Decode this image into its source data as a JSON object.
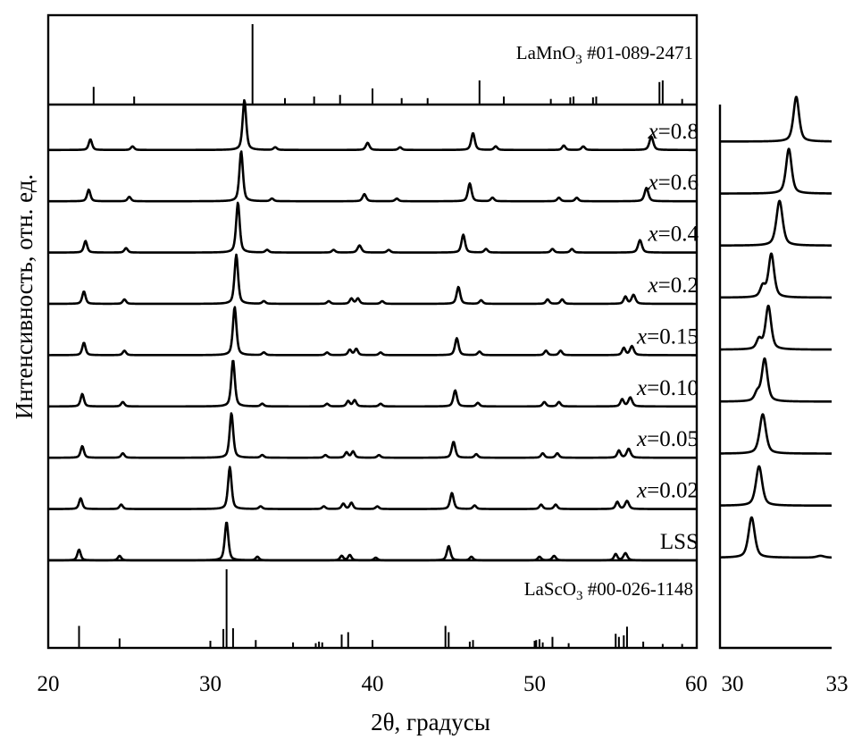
{
  "chart_data": [
    {
      "type": "line",
      "xlabel": "2θ, градусы",
      "ylabel": "Интенсивность, отн. ед.",
      "xlim": [
        20,
        60
      ],
      "xticks": [
        "20",
        "30",
        "40",
        "50",
        "60"
      ],
      "offset_stacked": true,
      "reference_top": {
        "label_parts": [
          "LaMnO",
          "3",
          " #01-089-2471"
        ],
        "peaks": [
          [
            22.8,
            0.22
          ],
          [
            25.3,
            0.1
          ],
          [
            32.6,
            1.0
          ],
          [
            34.6,
            0.08
          ],
          [
            36.4,
            0.1
          ],
          [
            38.0,
            0.12
          ],
          [
            40.0,
            0.2
          ],
          [
            41.8,
            0.08
          ],
          [
            43.4,
            0.08
          ],
          [
            46.6,
            0.3
          ],
          [
            48.1,
            0.1
          ],
          [
            51.0,
            0.07
          ],
          [
            52.2,
            0.09
          ],
          [
            52.4,
            0.1
          ],
          [
            53.6,
            0.09
          ],
          [
            53.8,
            0.1
          ],
          [
            57.7,
            0.28
          ],
          [
            57.9,
            0.3
          ],
          [
            59.1,
            0.07
          ]
        ]
      },
      "series": [
        {
          "name": "LSS",
          "name_parts": [
            "",
            "LSS"
          ],
          "peaks": [
            [
              21.9,
              0.12,
              0.12
            ],
            [
              24.4,
              0.05,
              0.12
            ],
            [
              31.0,
              0.43,
              0.13
            ],
            [
              32.9,
              0.04,
              0.12
            ],
            [
              38.1,
              0.05,
              0.12
            ],
            [
              38.6,
              0.06,
              0.12
            ],
            [
              40.2,
              0.03,
              0.12
            ],
            [
              44.7,
              0.16,
              0.13
            ],
            [
              46.1,
              0.04,
              0.12
            ],
            [
              50.3,
              0.04,
              0.12
            ],
            [
              51.2,
              0.05,
              0.13
            ],
            [
              55.0,
              0.07,
              0.12
            ],
            [
              55.6,
              0.08,
              0.14
            ]
          ]
        },
        {
          "name": "x=0.02",
          "name_parts": [
            "x",
            "=0.02"
          ],
          "peaks": [
            [
              22.0,
              0.12,
              0.12
            ],
            [
              24.5,
              0.05,
              0.12
            ],
            [
              31.2,
              0.47,
              0.13
            ],
            [
              33.1,
              0.03,
              0.12
            ],
            [
              37.0,
              0.03,
              0.12
            ],
            [
              38.2,
              0.06,
              0.12
            ],
            [
              38.7,
              0.07,
              0.12
            ],
            [
              40.3,
              0.03,
              0.12
            ],
            [
              44.9,
              0.18,
              0.13
            ],
            [
              46.3,
              0.04,
              0.12
            ],
            [
              50.4,
              0.05,
              0.12
            ],
            [
              51.3,
              0.05,
              0.12
            ],
            [
              55.1,
              0.08,
              0.12
            ],
            [
              55.7,
              0.09,
              0.14
            ]
          ]
        },
        {
          "name": "x=0.05",
          "name_parts": [
            "x",
            "=0.05"
          ],
          "peaks": [
            [
              22.1,
              0.13,
              0.12
            ],
            [
              24.6,
              0.05,
              0.12
            ],
            [
              31.3,
              0.5,
              0.13
            ],
            [
              33.2,
              0.03,
              0.12
            ],
            [
              37.1,
              0.03,
              0.12
            ],
            [
              38.4,
              0.06,
              0.12
            ],
            [
              38.8,
              0.07,
              0.12
            ],
            [
              40.4,
              0.03,
              0.12
            ],
            [
              45.0,
              0.18,
              0.13
            ],
            [
              46.4,
              0.04,
              0.12
            ],
            [
              50.5,
              0.05,
              0.12
            ],
            [
              51.4,
              0.05,
              0.12
            ],
            [
              55.2,
              0.08,
              0.12
            ],
            [
              55.8,
              0.1,
              0.14
            ]
          ]
        },
        {
          "name": "x=0.10",
          "name_parts": [
            "x",
            "=0.10"
          ],
          "peaks": [
            [
              22.1,
              0.14,
              0.12
            ],
            [
              24.6,
              0.05,
              0.12
            ],
            [
              31.4,
              0.52,
              0.13
            ],
            [
              33.2,
              0.03,
              0.12
            ],
            [
              37.2,
              0.03,
              0.12
            ],
            [
              38.5,
              0.06,
              0.12
            ],
            [
              38.9,
              0.07,
              0.12
            ],
            [
              40.5,
              0.03,
              0.12
            ],
            [
              45.1,
              0.18,
              0.13
            ],
            [
              46.5,
              0.04,
              0.12
            ],
            [
              50.6,
              0.05,
              0.12
            ],
            [
              51.5,
              0.05,
              0.12
            ],
            [
              55.4,
              0.08,
              0.12
            ],
            [
              55.9,
              0.1,
              0.14
            ]
          ]
        },
        {
          "name": "x=0.15",
          "name_parts": [
            "x",
            "=0.15"
          ],
          "peaks": [
            [
              22.2,
              0.14,
              0.12
            ],
            [
              24.7,
              0.05,
              0.12
            ],
            [
              31.5,
              0.54,
              0.13
            ],
            [
              33.3,
              0.03,
              0.12
            ],
            [
              37.2,
              0.03,
              0.12
            ],
            [
              38.6,
              0.06,
              0.12
            ],
            [
              39.0,
              0.07,
              0.12
            ],
            [
              40.5,
              0.03,
              0.12
            ],
            [
              45.2,
              0.19,
              0.13
            ],
            [
              46.6,
              0.04,
              0.12
            ],
            [
              50.7,
              0.05,
              0.12
            ],
            [
              51.6,
              0.05,
              0.12
            ],
            [
              55.5,
              0.08,
              0.12
            ],
            [
              56.0,
              0.1,
              0.14
            ]
          ]
        },
        {
          "name": "x=0.2",
          "name_parts": [
            "x",
            "=0.2"
          ],
          "peaks": [
            [
              22.2,
              0.14,
              0.12
            ],
            [
              24.7,
              0.05,
              0.12
            ],
            [
              31.6,
              0.55,
              0.13
            ],
            [
              33.3,
              0.03,
              0.12
            ],
            [
              37.3,
              0.03,
              0.12
            ],
            [
              38.7,
              0.06,
              0.12
            ],
            [
              39.1,
              0.06,
              0.12
            ],
            [
              40.6,
              0.03,
              0.12
            ],
            [
              45.3,
              0.19,
              0.13
            ],
            [
              46.7,
              0.04,
              0.12
            ],
            [
              50.8,
              0.05,
              0.12
            ],
            [
              51.7,
              0.05,
              0.12
            ],
            [
              55.6,
              0.08,
              0.12
            ],
            [
              56.1,
              0.1,
              0.14
            ]
          ]
        },
        {
          "name": "x=0.4",
          "name_parts": [
            "x",
            "=0.4"
          ],
          "peaks": [
            [
              22.3,
              0.13,
              0.12
            ],
            [
              24.8,
              0.05,
              0.12
            ],
            [
              31.7,
              0.56,
              0.13
            ],
            [
              33.5,
              0.03,
              0.12
            ],
            [
              37.6,
              0.03,
              0.12
            ],
            [
              39.2,
              0.08,
              0.14
            ],
            [
              41.0,
              0.03,
              0.12
            ],
            [
              45.6,
              0.2,
              0.13
            ],
            [
              47.0,
              0.04,
              0.12
            ],
            [
              51.1,
              0.04,
              0.12
            ],
            [
              52.3,
              0.04,
              0.12
            ],
            [
              56.5,
              0.14,
              0.14
            ]
          ]
        },
        {
          "name": "x=0.6",
          "name_parts": [
            "x",
            "=0.6"
          ],
          "peaks": [
            [
              22.5,
              0.13,
              0.12
            ],
            [
              25.0,
              0.05,
              0.12
            ],
            [
              31.9,
              0.56,
              0.13
            ],
            [
              33.8,
              0.03,
              0.12
            ],
            [
              39.5,
              0.08,
              0.13
            ],
            [
              41.5,
              0.03,
              0.12
            ],
            [
              46.0,
              0.2,
              0.13
            ],
            [
              47.4,
              0.04,
              0.12
            ],
            [
              51.5,
              0.04,
              0.12
            ],
            [
              52.6,
              0.04,
              0.12
            ],
            [
              56.9,
              0.15,
              0.14
            ]
          ]
        },
        {
          "name": "x=0.8",
          "name_parts": [
            "x",
            "=0.8"
          ],
          "peaks": [
            [
              22.6,
              0.12,
              0.12
            ],
            [
              25.2,
              0.04,
              0.12
            ],
            [
              32.1,
              0.56,
              0.13
            ],
            [
              34.0,
              0.03,
              0.12
            ],
            [
              39.7,
              0.08,
              0.13
            ],
            [
              41.7,
              0.03,
              0.12
            ],
            [
              46.2,
              0.19,
              0.13
            ],
            [
              47.6,
              0.04,
              0.12
            ],
            [
              51.8,
              0.05,
              0.12
            ],
            [
              53.0,
              0.04,
              0.12
            ],
            [
              57.2,
              0.15,
              0.14
            ]
          ]
        }
      ],
      "reference_bottom": {
        "label_parts": [
          "LaScO",
          "3",
          " #00-026-1148"
        ],
        "peaks": [
          [
            21.9,
            0.28
          ],
          [
            24.4,
            0.12
          ],
          [
            30.8,
            0.24
          ],
          [
            31.0,
            1.0
          ],
          [
            31.4,
            0.25
          ],
          [
            32.8,
            0.1
          ],
          [
            35.1,
            0.07
          ],
          [
            36.5,
            0.06
          ],
          [
            36.7,
            0.08
          ],
          [
            36.9,
            0.07
          ],
          [
            38.1,
            0.17
          ],
          [
            38.5,
            0.2
          ],
          [
            40.0,
            0.1
          ],
          [
            44.5,
            0.28
          ],
          [
            44.7,
            0.2
          ],
          [
            46.0,
            0.08
          ],
          [
            46.2,
            0.1
          ],
          [
            50.1,
            0.1
          ],
          [
            50.3,
            0.11
          ],
          [
            50.5,
            0.07
          ],
          [
            51.1,
            0.14
          ],
          [
            52.1,
            0.06
          ],
          [
            55.0,
            0.18
          ],
          [
            55.2,
            0.14
          ],
          [
            55.5,
            0.16
          ],
          [
            55.7,
            0.27
          ],
          [
            56.7,
            0.08
          ],
          [
            57.9,
            0.05
          ],
          [
            59.1,
            0.05
          ]
        ]
      }
    },
    {
      "type": "line",
      "xlim": [
        30,
        33
      ],
      "xticks": [
        "30",
        "33"
      ],
      "offset_stacked": true,
      "series": [
        {
          "name": "LSS",
          "peaks": [
            [
              30.85,
              0.9,
              0.1
            ],
            [
              32.7,
              0.04,
              0.12
            ]
          ]
        },
        {
          "name": "x=0.02",
          "peaks": [
            [
              31.05,
              0.88,
              0.1
            ]
          ]
        },
        {
          "name": "x=0.05",
          "peaks": [
            [
              31.15,
              0.88,
              0.1
            ]
          ]
        },
        {
          "name": "x=0.10",
          "peaks": [
            [
              31.0,
              0.18,
              0.08
            ],
            [
              31.2,
              0.95,
              0.09
            ]
          ]
        },
        {
          "name": "x=0.15",
          "peaks": [
            [
              31.05,
              0.22,
              0.08
            ],
            [
              31.3,
              0.97,
              0.09
            ]
          ]
        },
        {
          "name": "x=0.2",
          "peaks": [
            [
              31.15,
              0.24,
              0.08
            ],
            [
              31.38,
              0.97,
              0.09
            ]
          ]
        },
        {
          "name": "x=0.4",
          "peaks": [
            [
              31.6,
              1.0,
              0.1
            ]
          ]
        },
        {
          "name": "x=0.6",
          "peaks": [
            [
              31.85,
              1.0,
              0.09
            ]
          ]
        },
        {
          "name": "x=0.8",
          "peaks": [
            [
              32.05,
              1.0,
              0.09
            ]
          ]
        }
      ]
    }
  ]
}
